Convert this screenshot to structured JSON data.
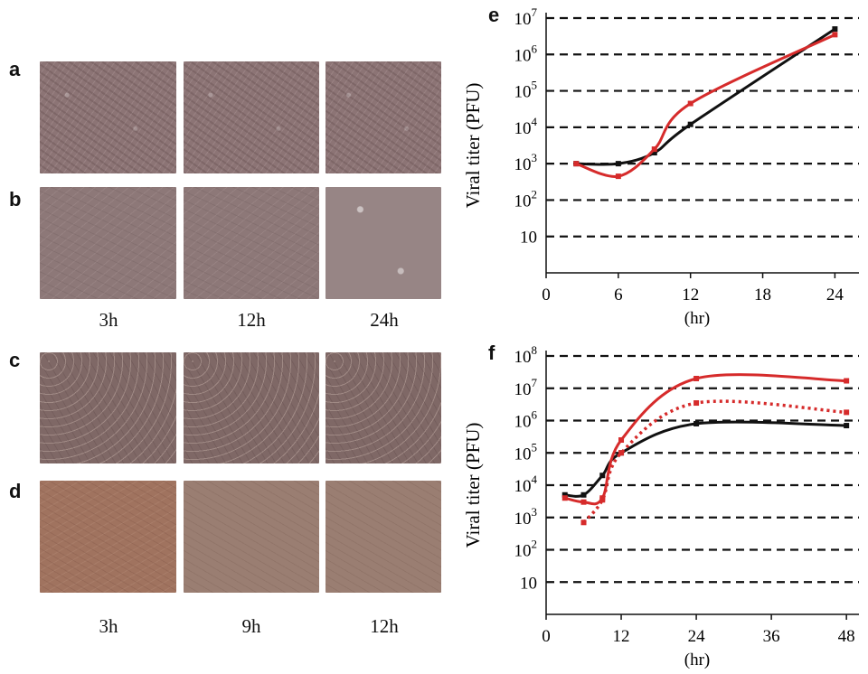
{
  "panels": {
    "a": "a",
    "b": "b",
    "c": "c",
    "d": "d",
    "e": "e",
    "f": "f"
  },
  "time_labels_top": [
    "3h",
    "12h",
    "24h"
  ],
  "time_labels_bottom": [
    "3h",
    "9h",
    "12h"
  ],
  "colors": {
    "red": "#d62b2b",
    "black": "#111111",
    "grid": "#111111"
  },
  "chart_data": [
    {
      "type": "line",
      "panel": "e",
      "xlabel": "(hr)",
      "ylabel": "Viral titer (PFU)",
      "xlim": [
        0,
        26
      ],
      "xticks": [
        0,
        6,
        12,
        18,
        24
      ],
      "ylim_log10": [
        0,
        7
      ],
      "yscale": "log",
      "yticks": [
        "10",
        "10^2",
        "10^3",
        "10^4",
        "10^5",
        "10^6",
        "10^7"
      ],
      "series": [
        {
          "color": "#111111",
          "points": [
            [
              2.5,
              1000
            ],
            [
              6,
              1000
            ],
            [
              9,
              2000
            ],
            [
              12,
              12000
            ],
            [
              24,
              5000000
            ]
          ]
        },
        {
          "color": "#d62b2b",
          "points": [
            [
              2.5,
              1000
            ],
            [
              6,
              450
            ],
            [
              9,
              2500
            ],
            [
              12,
              45000
            ],
            [
              24,
              3500000
            ]
          ]
        }
      ]
    },
    {
      "type": "line",
      "panel": "f",
      "xlabel": "(hr)",
      "ylabel": "Viral titer (PFU)",
      "xlim": [
        0,
        50
      ],
      "xticks": [
        0,
        12,
        24,
        36,
        48
      ],
      "ylim_log10": [
        0,
        8
      ],
      "yscale": "log",
      "yticks": [
        "10",
        "10^2",
        "10^3",
        "10^4",
        "10^5",
        "10^6",
        "10^7",
        "10^8"
      ],
      "series": [
        {
          "color": "#111111",
          "style": "solid",
          "points": [
            [
              3,
              5000
            ],
            [
              6,
              5000
            ],
            [
              9,
              20000
            ],
            [
              12,
              100000
            ],
            [
              24,
              800000
            ],
            [
              48,
              700000
            ]
          ]
        },
        {
          "color": "#d62b2b",
          "style": "solid",
          "points": [
            [
              3,
              4000
            ],
            [
              6,
              3000
            ],
            [
              9,
              4000
            ],
            [
              12,
              250000
            ],
            [
              24,
              20000000
            ],
            [
              48,
              17000000
            ]
          ]
        },
        {
          "color": "#d62b2b",
          "style": "dotted",
          "points": [
            [
              6,
              700
            ],
            [
              9,
              3500
            ],
            [
              12,
              100000
            ],
            [
              24,
              3500000
            ],
            [
              48,
              1800000
            ]
          ]
        }
      ]
    }
  ]
}
